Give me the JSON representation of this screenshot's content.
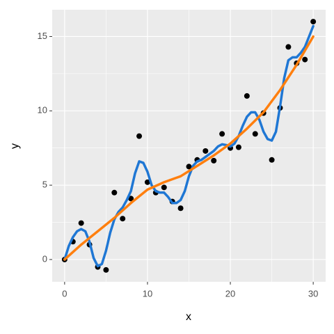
{
  "chart_data": {
    "type": "scatter",
    "xlabel": "x",
    "ylabel": "y",
    "xlim": [
      -1.5,
      31.5
    ],
    "ylim": [
      -1.5,
      16.8
    ],
    "xticks": [
      0,
      10,
      20,
      30
    ],
    "yticks": [
      0,
      5,
      10,
      15
    ],
    "grid": true,
    "background": "#ebebeb",
    "series": [
      {
        "kind": "points",
        "color": "#000000",
        "x": [
          0,
          1,
          2,
          3,
          4,
          5,
          6,
          7,
          8,
          9,
          10,
          11,
          12,
          13,
          14,
          15,
          16,
          17,
          18,
          19,
          20,
          21,
          22,
          23,
          24,
          25,
          26,
          27,
          28,
          29,
          30
        ],
        "values": [
          0,
          1.2,
          2.45,
          1.0,
          -0.5,
          -0.7,
          4.5,
          2.75,
          4.1,
          8.3,
          5.2,
          4.5,
          4.85,
          3.9,
          3.45,
          6.25,
          6.7,
          7.3,
          6.65,
          8.45,
          7.5,
          7.55,
          11.0,
          8.45,
          9.85,
          6.7,
          10.2,
          14.3,
          13.2,
          13.45,
          16.0
        ]
      },
      {
        "kind": "line",
        "color": "#1f77d4",
        "x": [
          0,
          0.5,
          1,
          1.5,
          2,
          2.5,
          3,
          3.5,
          4,
          4.5,
          5,
          5.5,
          6,
          6.5,
          7,
          7.5,
          8,
          8.5,
          9,
          9.5,
          10,
          10.5,
          11,
          11.5,
          12,
          12.5,
          13,
          13.5,
          14,
          14.5,
          15,
          15.5,
          16,
          16.5,
          17,
          17.5,
          18,
          18.5,
          19,
          19.5,
          20,
          20.5,
          21,
          21.5,
          22,
          22.5,
          23,
          23.5,
          24,
          24.5,
          25,
          25.5,
          26,
          26.5,
          27,
          27.5,
          28,
          28.5,
          29,
          29.5,
          30
        ],
        "values": [
          0,
          0.9,
          1.5,
          1.9,
          2.05,
          1.9,
          1.2,
          0.1,
          -0.45,
          -0.3,
          0.6,
          1.8,
          2.7,
          3.2,
          3.5,
          4.0,
          4.6,
          5.8,
          6.6,
          6.5,
          5.9,
          5.0,
          4.6,
          4.5,
          4.5,
          4.2,
          3.8,
          3.8,
          4.0,
          4.6,
          5.6,
          6.3,
          6.6,
          6.7,
          6.9,
          7.1,
          7.3,
          7.6,
          7.75,
          7.7,
          7.6,
          7.8,
          8.3,
          9.0,
          9.6,
          9.9,
          9.9,
          9.4,
          8.6,
          8.1,
          8.0,
          8.6,
          10.3,
          12.2,
          13.4,
          13.6,
          13.6,
          13.9,
          14.3,
          15.0,
          15.7
        ]
      },
      {
        "kind": "line",
        "color": "#ff7f0e",
        "x": [
          0,
          2,
          4,
          6,
          8,
          10,
          12,
          14,
          16,
          18,
          20,
          22,
          24,
          26,
          28,
          30
        ],
        "values": [
          0,
          1.0,
          1.9,
          2.8,
          3.8,
          4.7,
          5.2,
          5.6,
          6.3,
          7.0,
          7.8,
          8.8,
          9.9,
          11.4,
          13.1,
          15.0
        ]
      }
    ]
  }
}
